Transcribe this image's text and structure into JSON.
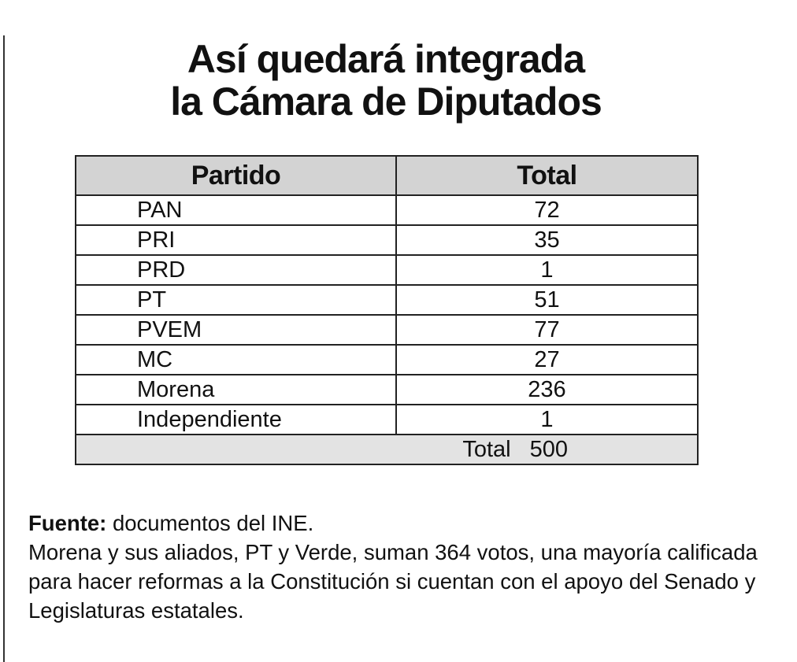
{
  "title": {
    "line1": "Así quedará integrada",
    "line2": "la Cámara de Diputados"
  },
  "table": {
    "headers": [
      "Partido",
      "Total"
    ],
    "rows": [
      {
        "party": "PAN",
        "total": "72"
      },
      {
        "party": "PRI",
        "total": "35"
      },
      {
        "party": "PRD",
        "total": "1"
      },
      {
        "party": "PT",
        "total": "51"
      },
      {
        "party": "PVEM",
        "total": "77"
      },
      {
        "party": "MC",
        "total": "27"
      },
      {
        "party": "Morena",
        "total": "236"
      },
      {
        "party": "Independiente",
        "total": "1"
      }
    ],
    "total_label": "Total",
    "total_value": "500"
  },
  "footer": {
    "source_label": "Fuente:",
    "source_text": " documentos del INE.",
    "note": "Morena y sus aliados, PT y Verde, suman 364 votos, una mayoría calificada para hacer reformas a la Constitución si cuentan con el apoyo del Senado y Legislaturas estatales."
  }
}
